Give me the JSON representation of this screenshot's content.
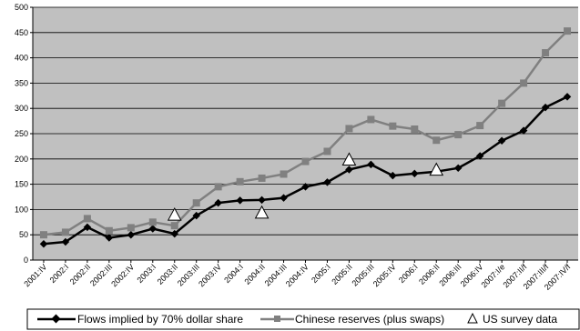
{
  "chart_data": {
    "type": "line",
    "title": "",
    "xlabel": "",
    "ylabel": "",
    "ylim": [
      0,
      500
    ],
    "yticks": [
      0,
      50,
      100,
      150,
      200,
      250,
      300,
      350,
      400,
      450,
      500
    ],
    "grid": "horizontal",
    "legend_position": "bottom",
    "categories": [
      "2001:IV",
      "2002:I",
      "2002:II",
      "2002:III",
      "2002:IV",
      "2003:I",
      "2003:II",
      "2003:III",
      "2003:IV",
      "2004:I",
      "2004:II",
      "2004:III",
      "2004:IV",
      "2005:I",
      "2005:II",
      "2005:III",
      "2005:IV",
      "2006:I",
      "2006:II",
      "2006:III",
      "2006:IV",
      "2007:I/e",
      "2007:II/f",
      "2007:III/f",
      "2007:IV/f"
    ],
    "series": [
      {
        "name": "Flows implied by 70% dollar share",
        "color": "#000000",
        "marker": "diamond",
        "values": [
          32,
          36,
          65,
          44,
          50,
          62,
          52,
          88,
          113,
          118,
          119,
          123,
          145,
          154,
          179,
          189,
          167,
          171,
          175,
          182,
          206,
          236,
          256,
          302,
          323
        ]
      },
      {
        "name": "Chinese reserves (plus swaps)",
        "color": "#808080",
        "marker": "square",
        "values": [
          50,
          55,
          82,
          58,
          64,
          75,
          68,
          113,
          145,
          155,
          162,
          170,
          195,
          215,
          260,
          278,
          265,
          259,
          237,
          248,
          266,
          310,
          350,
          410,
          453
        ]
      },
      {
        "name": "US survey data",
        "color": "#ffffff",
        "marker": "triangle",
        "points": [
          {
            "x": "2003:II",
            "y": 88
          },
          {
            "x": "2004:II",
            "y": 92
          },
          {
            "x": "2005:II",
            "y": 197
          },
          {
            "x": "2006:II",
            "y": 177
          }
        ]
      }
    ]
  }
}
